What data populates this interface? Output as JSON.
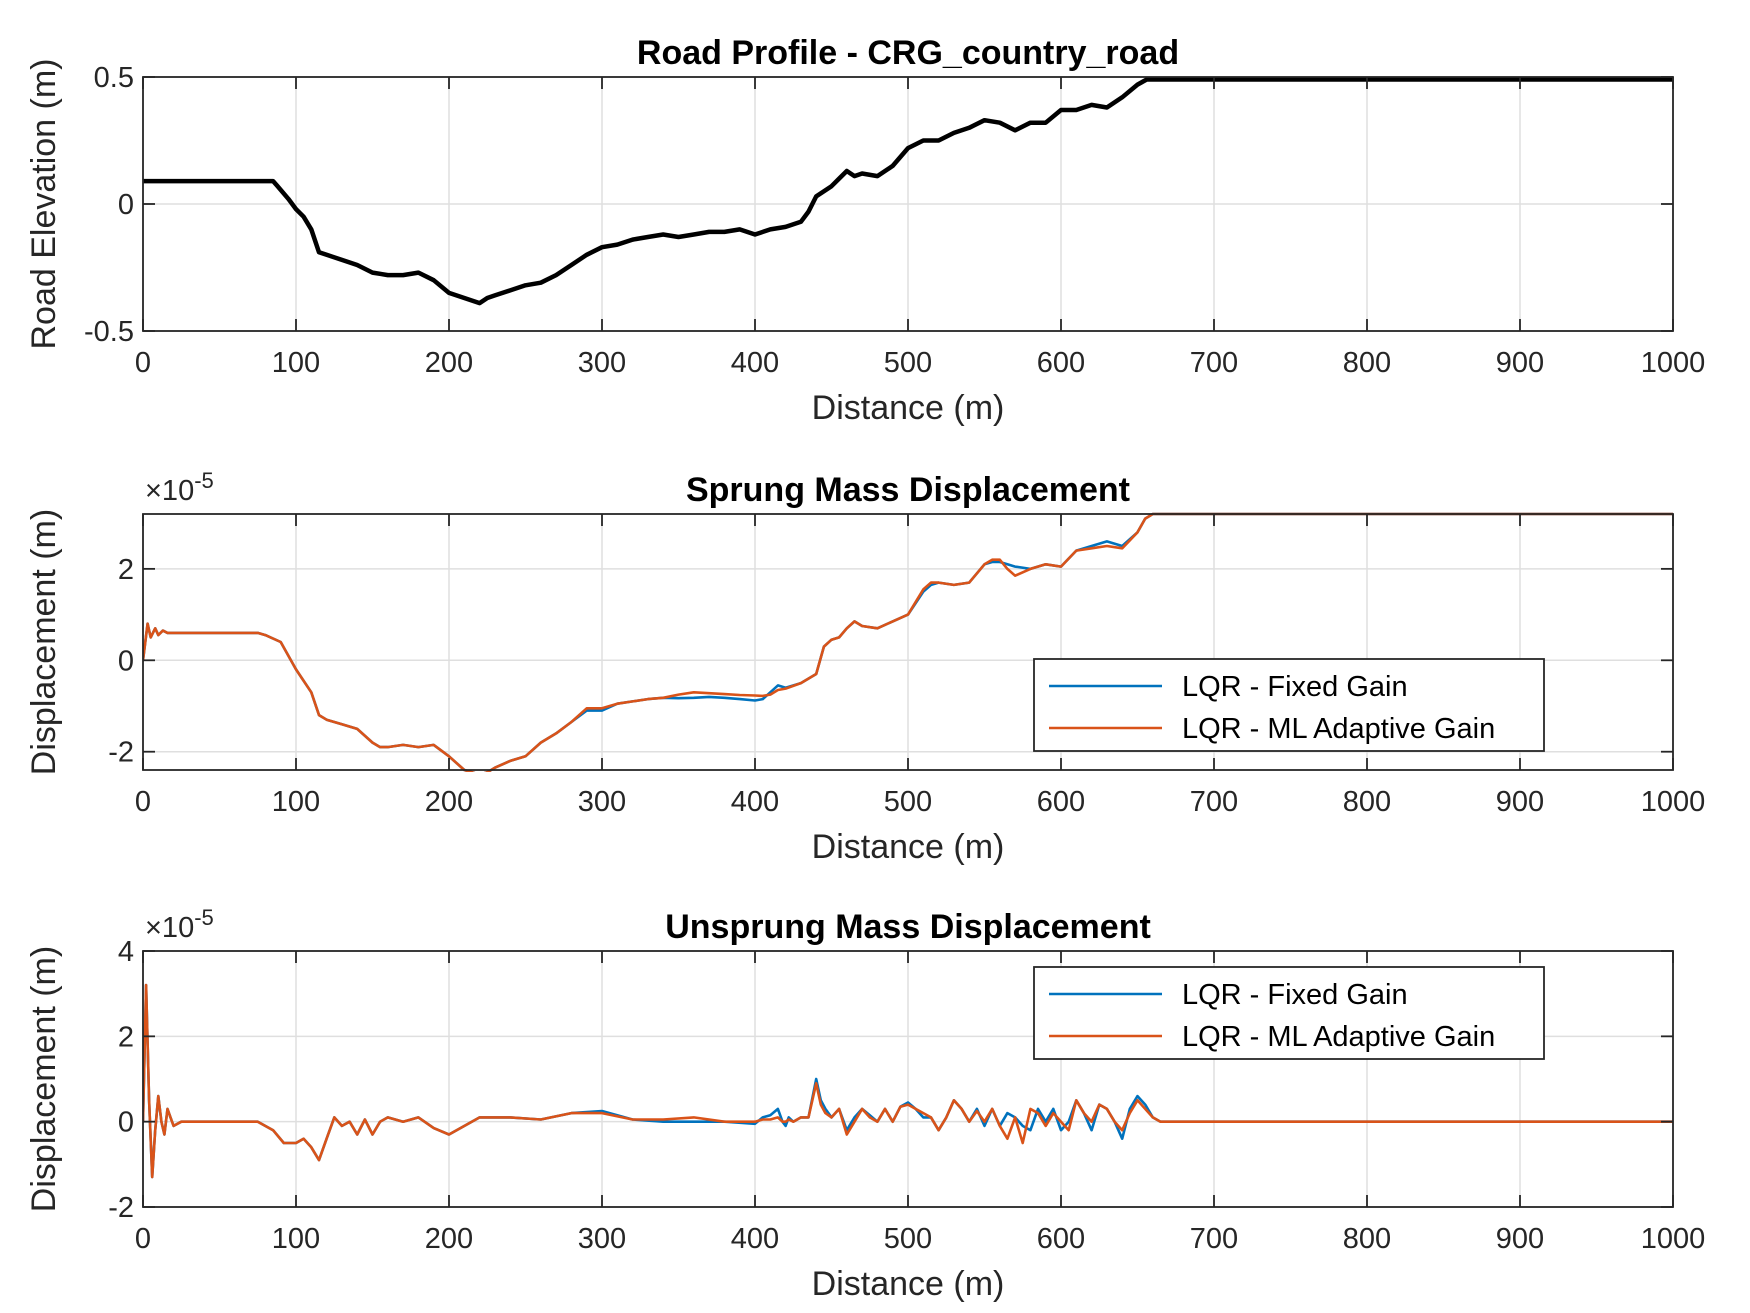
{
  "colors": {
    "fixed": "#0072BD",
    "adaptive": "#D95319",
    "road": "#000000"
  },
  "chart_data": [
    {
      "type": "line",
      "title": "Road Profile - CRG_country_road",
      "xlabel": "Distance (m)",
      "ylabel": "Road Elevation (m)",
      "xlim": [
        0,
        1000
      ],
      "ylim": [
        -0.5,
        0.5
      ],
      "xticks": [
        "0",
        "100",
        "200",
        "300",
        "400",
        "500",
        "600",
        "700",
        "800",
        "900",
        "1000"
      ],
      "yticks": [
        "-0.5",
        "0",
        "0.5"
      ],
      "ytick_values": [
        -0.5,
        0,
        0.5
      ],
      "grid": true,
      "series": [
        {
          "color": "#000000",
          "x": [
            0,
            85,
            88,
            95,
            100,
            105,
            110,
            115,
            120,
            130,
            140,
            150,
            160,
            170,
            180,
            190,
            200,
            210,
            220,
            225,
            230,
            240,
            250,
            260,
            270,
            280,
            290,
            300,
            310,
            320,
            330,
            340,
            350,
            360,
            370,
            380,
            390,
            400,
            410,
            420,
            430,
            435,
            440,
            450,
            455,
            460,
            465,
            470,
            480,
            490,
            500,
            510,
            520,
            530,
            540,
            550,
            560,
            570,
            580,
            590,
            600,
            610,
            620,
            630,
            640,
            650,
            656,
            700,
            800,
            900,
            1000
          ],
          "y": [
            0.09,
            0.09,
            0.07,
            0.02,
            -0.02,
            -0.05,
            -0.1,
            -0.19,
            -0.2,
            -0.22,
            -0.24,
            -0.27,
            -0.28,
            -0.28,
            -0.27,
            -0.3,
            -0.35,
            -0.37,
            -0.39,
            -0.37,
            -0.36,
            -0.34,
            -0.32,
            -0.31,
            -0.28,
            -0.24,
            -0.2,
            -0.17,
            -0.16,
            -0.14,
            -0.13,
            -0.12,
            -0.13,
            -0.12,
            -0.11,
            -0.11,
            -0.1,
            -0.12,
            -0.1,
            -0.09,
            -0.07,
            -0.03,
            0.03,
            0.07,
            0.1,
            0.13,
            0.11,
            0.12,
            0.11,
            0.15,
            0.22,
            0.25,
            0.25,
            0.28,
            0.3,
            0.33,
            0.32,
            0.29,
            0.32,
            0.32,
            0.37,
            0.37,
            0.39,
            0.38,
            0.42,
            0.47,
            0.49,
            0.49,
            0.49,
            0.49,
            0.49
          ]
        }
      ]
    },
    {
      "type": "line",
      "title": "Sprung Mass Displacement",
      "xlabel": "Distance (m)",
      "ylabel": "Displacement (m)",
      "xlim": [
        0,
        1000
      ],
      "ylim": [
        -2.4,
        3.2
      ],
      "y_multiplier_base": "×10",
      "y_multiplier_exponent": "-5",
      "xticks": [
        "0",
        "100",
        "200",
        "300",
        "400",
        "500",
        "600",
        "700",
        "800",
        "900",
        "1000"
      ],
      "yticks": [
        "-2",
        "0",
        "2"
      ],
      "ytick_values": [
        -2,
        0,
        2
      ],
      "grid": true,
      "legend": "center-right",
      "series": [
        {
          "name": "LQR - Fixed Gain",
          "color": "#0072BD",
          "x": [
            0,
            3,
            5,
            8,
            10,
            13,
            16,
            20,
            30,
            75,
            80,
            90,
            100,
            110,
            115,
            120,
            130,
            140,
            150,
            155,
            160,
            170,
            180,
            190,
            200,
            210,
            215,
            220,
            225,
            230,
            240,
            250,
            260,
            270,
            280,
            290,
            300,
            310,
            320,
            330,
            340,
            350,
            360,
            370,
            380,
            390,
            400,
            405,
            410,
            415,
            420,
            430,
            440,
            445,
            450,
            455,
            460,
            465,
            470,
            480,
            490,
            500,
            510,
            515,
            520,
            530,
            540,
            550,
            555,
            560,
            565,
            570,
            580,
            590,
            600,
            610,
            620,
            630,
            640,
            650,
            655,
            660,
            700,
            800,
            900,
            1000
          ],
          "y": [
            0,
            0.8,
            0.5,
            0.7,
            0.55,
            0.65,
            0.6,
            0.6,
            0.6,
            0.6,
            0.55,
            0.4,
            -0.2,
            -0.7,
            -1.2,
            -1.3,
            -1.4,
            -1.5,
            -1.8,
            -1.9,
            -1.9,
            -1.85,
            -1.9,
            -1.85,
            -2.1,
            -2.4,
            -2.45,
            -2.5,
            -2.45,
            -2.35,
            -2.2,
            -2.1,
            -1.8,
            -1.6,
            -1.35,
            -1.1,
            -1.1,
            -0.95,
            -0.9,
            -0.85,
            -0.82,
            -0.83,
            -0.82,
            -0.8,
            -0.82,
            -0.85,
            -0.88,
            -0.85,
            -0.7,
            -0.55,
            -0.6,
            -0.5,
            -0.3,
            0.3,
            0.45,
            0.5,
            0.7,
            0.85,
            0.75,
            0.7,
            0.85,
            1.0,
            1.5,
            1.65,
            1.7,
            1.65,
            1.7,
            2.1,
            2.15,
            2.15,
            2.1,
            2.05,
            2.0,
            2.1,
            2.05,
            2.4,
            2.5,
            2.6,
            2.5,
            2.8,
            3.1,
            3.2,
            3.2,
            3.2,
            3.2,
            3.2
          ]
        },
        {
          "name": "LQR - ML Adaptive Gain",
          "color": "#D95319",
          "x": [
            0,
            3,
            5,
            8,
            10,
            13,
            16,
            20,
            30,
            75,
            80,
            90,
            100,
            110,
            115,
            120,
            130,
            140,
            150,
            155,
            160,
            170,
            180,
            190,
            200,
            210,
            215,
            220,
            225,
            230,
            240,
            250,
            260,
            270,
            280,
            290,
            300,
            310,
            320,
            330,
            340,
            350,
            360,
            370,
            380,
            390,
            400,
            405,
            410,
            415,
            420,
            430,
            440,
            445,
            450,
            455,
            460,
            465,
            470,
            480,
            490,
            500,
            510,
            515,
            520,
            530,
            540,
            550,
            555,
            560,
            565,
            570,
            580,
            590,
            600,
            610,
            620,
            630,
            640,
            650,
            655,
            660,
            700,
            800,
            900,
            1000
          ],
          "y": [
            0,
            0.8,
            0.5,
            0.7,
            0.55,
            0.65,
            0.6,
            0.6,
            0.6,
            0.6,
            0.55,
            0.4,
            -0.2,
            -0.7,
            -1.2,
            -1.3,
            -1.4,
            -1.5,
            -1.8,
            -1.9,
            -1.9,
            -1.85,
            -1.9,
            -1.85,
            -2.1,
            -2.4,
            -2.45,
            -2.5,
            -2.45,
            -2.35,
            -2.2,
            -2.1,
            -1.8,
            -1.6,
            -1.35,
            -1.05,
            -1.05,
            -0.95,
            -0.9,
            -0.85,
            -0.82,
            -0.75,
            -0.7,
            -0.72,
            -0.74,
            -0.76,
            -0.77,
            -0.78,
            -0.75,
            -0.65,
            -0.62,
            -0.5,
            -0.3,
            0.3,
            0.45,
            0.5,
            0.7,
            0.85,
            0.75,
            0.7,
            0.85,
            1.0,
            1.55,
            1.7,
            1.7,
            1.65,
            1.7,
            2.1,
            2.2,
            2.2,
            2.0,
            1.85,
            2.0,
            2.1,
            2.05,
            2.4,
            2.45,
            2.5,
            2.45,
            2.8,
            3.1,
            3.2,
            3.2,
            3.2,
            3.2,
            3.2
          ]
        }
      ]
    },
    {
      "type": "line",
      "title": "Unsprung Mass Displacement",
      "xlabel": "Distance (m)",
      "ylabel": "Displacement (m)",
      "xlim": [
        0,
        1000
      ],
      "ylim": [
        -2,
        4
      ],
      "y_multiplier_base": "×10",
      "y_multiplier_exponent": "-5",
      "xticks": [
        "0",
        "100",
        "200",
        "300",
        "400",
        "500",
        "600",
        "700",
        "800",
        "900",
        "1000"
      ],
      "yticks": [
        "-2",
        "0",
        "2",
        "4"
      ],
      "ytick_values": [
        -2,
        0,
        2,
        4
      ],
      "grid": true,
      "legend": "top-right",
      "series": [
        {
          "name": "LQR - Fixed Gain",
          "color": "#0072BD",
          "x": [
            0,
            2,
            4,
            6,
            8,
            10,
            12,
            14,
            16,
            18,
            20,
            25,
            30,
            75,
            85,
            92,
            100,
            105,
            110,
            115,
            120,
            125,
            130,
            135,
            140,
            145,
            150,
            155,
            160,
            170,
            180,
            190,
            200,
            205,
            220,
            240,
            260,
            280,
            300,
            320,
            340,
            360,
            380,
            400,
            405,
            410,
            415,
            418,
            420,
            422,
            425,
            430,
            435,
            440,
            443,
            446,
            450,
            455,
            460,
            465,
            470,
            475,
            480,
            485,
            490,
            495,
            500,
            505,
            510,
            515,
            520,
            525,
            530,
            535,
            540,
            545,
            550,
            555,
            560,
            565,
            570,
            575,
            580,
            585,
            590,
            595,
            600,
            605,
            610,
            615,
            620,
            625,
            630,
            635,
            640,
            645,
            650,
            655,
            660,
            665,
            670,
            680,
            700,
            800,
            900,
            1000
          ],
          "y": [
            0,
            3.2,
            0.5,
            -1.3,
            -0.2,
            0.6,
            0.0,
            -0.3,
            0.3,
            0.1,
            -0.1,
            0.0,
            0.0,
            0.0,
            -0.2,
            -0.5,
            -0.5,
            -0.4,
            -0.6,
            -0.9,
            -0.4,
            0.1,
            -0.1,
            0.0,
            -0.3,
            0.05,
            -0.3,
            0.0,
            0.1,
            0.0,
            0.1,
            -0.15,
            -0.3,
            -0.2,
            0.1,
            0.1,
            0.05,
            0.2,
            0.25,
            0.05,
            0.0,
            0.0,
            0.0,
            -0.05,
            0.1,
            0.15,
            0.3,
            0.0,
            -0.1,
            0.1,
            0.0,
            0.1,
            0.1,
            1.0,
            0.5,
            0.3,
            0.1,
            0.3,
            -0.2,
            0.1,
            0.3,
            0.15,
            0.0,
            0.3,
            0.0,
            0.35,
            0.45,
            0.3,
            0.1,
            0.1,
            -0.2,
            0.1,
            0.5,
            0.3,
            0.0,
            0.3,
            -0.1,
            0.3,
            -0.1,
            0.2,
            0.1,
            -0.1,
            -0.2,
            0.3,
            0.0,
            0.3,
            -0.2,
            0.0,
            0.5,
            0.2,
            -0.2,
            0.4,
            0.3,
            0.0,
            -0.4,
            0.3,
            0.6,
            0.4,
            0.1,
            0.0,
            0.0,
            0.0,
            0.0,
            0.0,
            0.0,
            0.0
          ]
        },
        {
          "name": "LQR - ML Adaptive Gain",
          "color": "#D95319",
          "x": [
            0,
            2,
            4,
            6,
            8,
            10,
            12,
            14,
            16,
            18,
            20,
            25,
            30,
            75,
            85,
            92,
            100,
            105,
            110,
            115,
            120,
            125,
            130,
            135,
            140,
            145,
            150,
            155,
            160,
            170,
            180,
            190,
            200,
            205,
            220,
            240,
            260,
            280,
            300,
            320,
            340,
            360,
            380,
            400,
            405,
            410,
            415,
            418,
            420,
            422,
            425,
            430,
            435,
            440,
            443,
            446,
            450,
            455,
            460,
            465,
            470,
            475,
            480,
            485,
            490,
            495,
            500,
            505,
            510,
            515,
            520,
            525,
            530,
            535,
            540,
            545,
            550,
            555,
            560,
            565,
            570,
            575,
            580,
            585,
            590,
            595,
            600,
            605,
            610,
            615,
            620,
            625,
            630,
            635,
            640,
            645,
            650,
            655,
            660,
            665,
            670,
            680,
            700,
            800,
            900,
            1000
          ],
          "y": [
            0,
            3.2,
            0.5,
            -1.3,
            -0.2,
            0.6,
            0.0,
            -0.3,
            0.3,
            0.1,
            -0.1,
            0.0,
            0.0,
            0.0,
            -0.2,
            -0.5,
            -0.5,
            -0.4,
            -0.6,
            -0.9,
            -0.4,
            0.1,
            -0.1,
            0.0,
            -0.3,
            0.05,
            -0.3,
            0.0,
            0.1,
            0.0,
            0.1,
            -0.15,
            -0.3,
            -0.2,
            0.1,
            0.1,
            0.05,
            0.2,
            0.2,
            0.05,
            0.05,
            0.1,
            0.0,
            0.0,
            0.05,
            0.05,
            0.1,
            0.0,
            0.0,
            0.05,
            0.0,
            0.1,
            0.1,
            0.9,
            0.4,
            0.2,
            0.1,
            0.3,
            -0.3,
            0.0,
            0.3,
            0.1,
            0.0,
            0.3,
            0.0,
            0.35,
            0.4,
            0.3,
            0.2,
            0.1,
            -0.2,
            0.1,
            0.5,
            0.3,
            0.0,
            0.25,
            0.0,
            0.3,
            -0.1,
            -0.4,
            0.1,
            -0.5,
            0.3,
            0.2,
            -0.1,
            0.2,
            0.0,
            -0.2,
            0.5,
            0.2,
            0.0,
            0.4,
            0.3,
            0.0,
            -0.2,
            0.2,
            0.5,
            0.3,
            0.1,
            0.0,
            0.0,
            0.0,
            0.0,
            0.0,
            0.0,
            0.0
          ]
        }
      ]
    }
  ]
}
